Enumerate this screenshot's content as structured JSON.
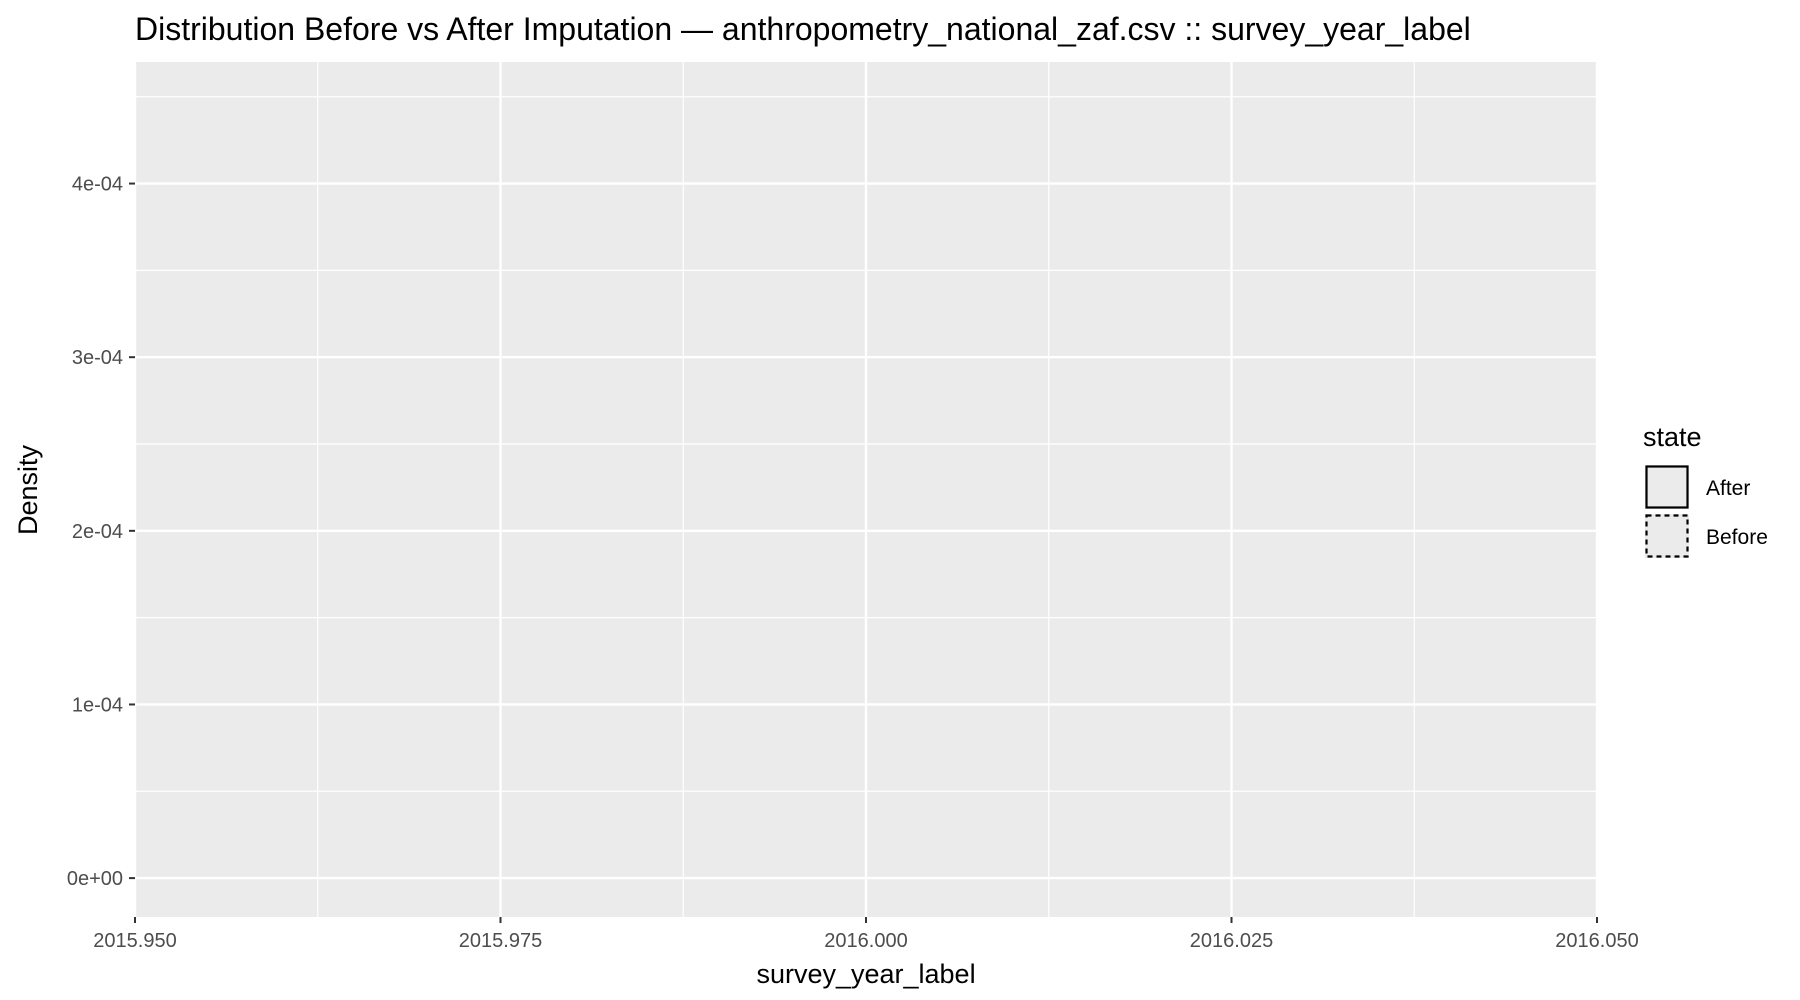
{
  "chart_data": {
    "type": "area",
    "title": "Distribution Before vs After Imputation — anthropometry_national_zaf.csv :: survey_year_label",
    "xlabel": "survey_year_label",
    "ylabel": "Density",
    "xlim": [
      2015.95,
      2016.05
    ],
    "ylim": [
      -2.24e-05,
      0.00047
    ],
    "x_ticks": [
      2015.95,
      2015.975,
      2016.0,
      2016.025,
      2016.05
    ],
    "x_tick_labels": [
      "2015.950",
      "2015.975",
      "2016.000",
      "2016.025",
      "2016.050"
    ],
    "y_ticks": [
      0,
      0.0001,
      0.0002,
      0.0003,
      0.0004
    ],
    "y_tick_labels": [
      "0e+00",
      "1e-04",
      "2e-04",
      "3e-04",
      "4e-04"
    ],
    "grid": true,
    "legend": {
      "title": "state",
      "position": "right",
      "entries": [
        {
          "label": "After",
          "linetype": "solid"
        },
        {
          "label": "Before",
          "linetype": "dashed"
        }
      ]
    },
    "series": [
      {
        "name": "After",
        "x": [],
        "y": []
      },
      {
        "name": "Before",
        "x": [],
        "y": []
      }
    ],
    "colors": {
      "panel": "#ebebeb",
      "grid": "#ffffff",
      "line": "#000000"
    }
  }
}
